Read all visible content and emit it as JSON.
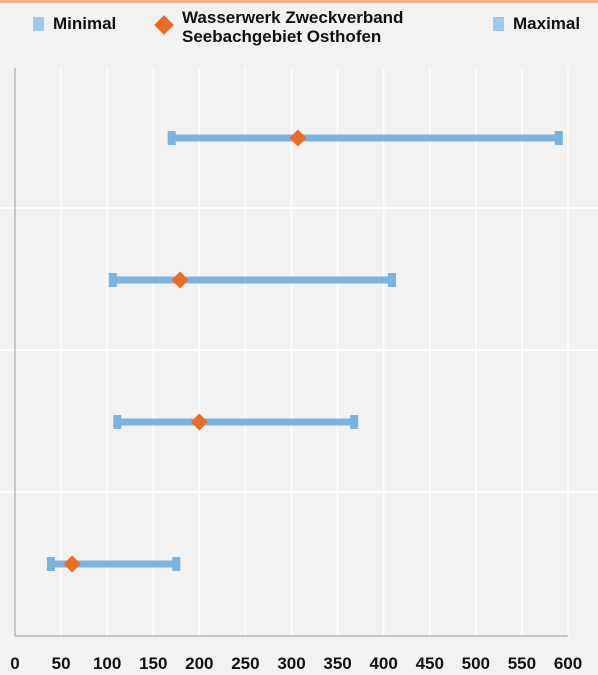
{
  "legend": {
    "minimal": "Minimal",
    "wasserwerk_line1": "Wasserwerk Zweckverband",
    "wasserwerk_line2": "Seebachgebiet Osthofen",
    "maximal": "Maximal"
  },
  "colors": {
    "range_bar": "#7bb3e0",
    "minimal_marker": "#9ccaed",
    "maximal_marker": "#9ccaed",
    "wasserwerk_marker": "#ec6b25",
    "background": "#f2f2f2",
    "grid": "#ffffff",
    "axis": "#999999"
  },
  "chart_data": {
    "type": "range",
    "orientation": "horizontal",
    "categories": [
      "",
      "",
      "",
      ""
    ],
    "series": [
      {
        "name": "Minimal",
        "values": [
          170,
          106,
          111,
          39
        ]
      },
      {
        "name": "Wasserwerk Zweckverband Seebachgebiet Osthofen",
        "values": [
          307,
          179,
          200,
          62
        ]
      },
      {
        "name": "Maximal",
        "values": [
          590,
          409,
          368,
          175
        ]
      }
    ],
    "xlim": [
      0,
      600
    ],
    "xticks": [
      0,
      50,
      100,
      150,
      200,
      250,
      300,
      350,
      400,
      450,
      500,
      550,
      600
    ],
    "grid": true,
    "legend_position": "top"
  }
}
